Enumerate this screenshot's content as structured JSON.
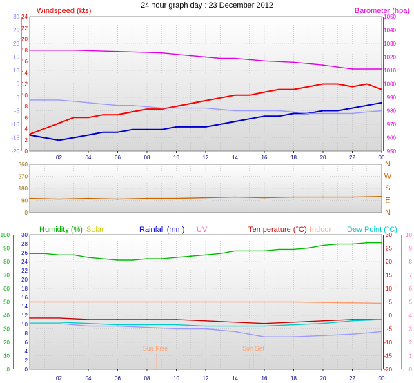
{
  "chart_data": [
    {
      "type": "line",
      "title": "24 hour graph day : 23 December 2012",
      "x_ticks": [
        "02",
        "04",
        "06",
        "08",
        "10",
        "12",
        "14",
        "16",
        "18",
        "20",
        "22",
        "00"
      ],
      "grid": true,
      "axes": [
        {
          "id": "temp_left",
          "side": "left",
          "ticks": [
            "-20",
            "-15",
            "-10",
            "-5",
            "0",
            "5",
            "10",
            "15",
            "20",
            "25",
            "30"
          ],
          "color": "#8080ff"
        },
        {
          "id": "wind",
          "side": "left",
          "label": "Windspeed (kts)",
          "ticks": [
            "0",
            "2",
            "4",
            "6",
            "8",
            "10",
            "12",
            "14",
            "16",
            "18",
            "20",
            "22",
            "24"
          ],
          "color": "#e00000"
        },
        {
          "id": "baro",
          "side": "right",
          "label": "Barometer (hpa)",
          "ticks": [
            "950",
            "960",
            "970",
            "980",
            "990",
            "1000",
            "1010",
            "1020",
            "1030",
            "1040",
            "1050"
          ],
          "color": "#e000e0"
        }
      ],
      "series": [
        {
          "name": "Windspeed (kts)",
          "axis": "wind",
          "color": "#ff0000",
          "x": [
            0,
            1,
            2,
            3,
            4,
            5,
            6,
            7,
            8,
            9,
            10,
            11,
            12,
            13,
            14,
            15,
            16,
            17,
            18,
            19,
            20,
            21,
            22,
            23,
            24
          ],
          "values": [
            3,
            4,
            5,
            6,
            6,
            6.5,
            6.5,
            7,
            7.5,
            7.5,
            8,
            8.5,
            9,
            9.5,
            10,
            10,
            10.5,
            11,
            11,
            11.5,
            12,
            12,
            11.5,
            12,
            11
          ]
        },
        {
          "name": "Barometer (hpa)",
          "axis": "baro",
          "color": "#e000e0",
          "x": [
            0,
            3,
            6,
            9,
            11,
            12,
            13,
            14,
            16,
            18,
            20,
            22,
            24
          ],
          "values": [
            1025,
            1025,
            1024,
            1023,
            1021,
            1020,
            1019,
            1019,
            1017,
            1016,
            1014,
            1011,
            1011
          ]
        },
        {
          "name": "",
          "axis": "temp_left",
          "color": "#0000cc",
          "x": [
            0,
            1,
            2,
            3,
            4,
            5,
            6,
            7,
            8,
            9,
            10,
            11,
            12,
            13,
            14,
            15,
            16,
            17,
            18,
            19,
            20,
            21,
            22,
            23,
            24
          ],
          "values": [
            -14,
            -15,
            -16,
            -15,
            -14,
            -13,
            -13,
            -12,
            -12,
            -12,
            -11,
            -11,
            -11,
            -10,
            -9,
            -8,
            -7,
            -7,
            -6,
            -6,
            -5,
            -5,
            -4,
            -3,
            -2
          ]
        },
        {
          "name": "",
          "axis": "temp_left",
          "color": "#9999ff",
          "x": [
            0,
            1,
            2,
            3,
            4,
            5,
            6,
            7,
            8,
            9,
            10,
            11,
            12,
            13,
            14,
            15,
            16,
            17,
            18,
            19,
            20,
            21,
            22,
            23,
            24
          ],
          "values": [
            -1,
            -1,
            -1,
            -1.5,
            -2,
            -2.5,
            -3,
            -3,
            -3.5,
            -4,
            -4,
            -4,
            -4,
            -4.5,
            -5,
            -5,
            -5,
            -5,
            -5.5,
            -6,
            -6,
            -6,
            -6,
            -5.5,
            -5
          ]
        }
      ]
    },
    {
      "type": "line",
      "x_ticks": [],
      "grid": true,
      "axes": [
        {
          "id": "dir",
          "side": "left",
          "ticks": [
            "0",
            "90",
            "180",
            "270",
            "360"
          ],
          "color": "#996600"
        },
        {
          "id": "compass",
          "side": "right",
          "ticks": [
            "N",
            "E",
            "S",
            "W",
            "N"
          ],
          "color": "#cc6600"
        }
      ],
      "series": [
        {
          "name": "",
          "axis": "dir",
          "color": "#cc6600",
          "x": [
            0,
            2,
            4,
            6,
            8,
            10,
            12,
            14,
            16,
            18,
            20,
            22,
            24
          ],
          "values": [
            105,
            100,
            105,
            100,
            105,
            105,
            110,
            115,
            110,
            115,
            115,
            115,
            120
          ]
        }
      ]
    },
    {
      "type": "line",
      "x_ticks": [
        "02",
        "04",
        "06",
        "08",
        "10",
        "12",
        "14",
        "16",
        "18",
        "20",
        "22",
        "00"
      ],
      "grid": true,
      "legend": [
        "Humidity (%)",
        "Solar",
        "Rainfall (mm)",
        "UV",
        "Temperature (°C)",
        "Indoor",
        "Dew Point (°C)"
      ],
      "annotations": [
        "Sun Rise",
        "Sun Set"
      ],
      "axes": [
        {
          "id": "hum",
          "side": "left",
          "ticks": [
            "0",
            "10",
            "20",
            "30",
            "40",
            "50",
            "60",
            "70",
            "80",
            "90",
            "100"
          ],
          "color": "#00aa00"
        },
        {
          "id": "rain",
          "side": "left",
          "ticks": [
            "0",
            "2",
            "4",
            "6",
            "8",
            "10",
            "12",
            "14",
            "16",
            "18",
            "20",
            "22",
            "24",
            "26",
            "28",
            "30"
          ],
          "color": "#0000cc"
        },
        {
          "id": "temp",
          "side": "right",
          "ticks": [
            "-20",
            "-15",
            "-10",
            "-5",
            "0",
            "5",
            "10",
            "15",
            "20",
            "25",
            "30"
          ],
          "color": "#cc0000"
        },
        {
          "id": "uv",
          "side": "right",
          "ticks": [
            "0",
            "1",
            "2",
            "3",
            "4",
            "5",
            "6",
            "7",
            "8",
            "9",
            "10"
          ],
          "color": "#ff66cc"
        }
      ],
      "series": [
        {
          "name": "Humidity (%)",
          "axis": "hum",
          "color": "#00bb00",
          "x": [
            0,
            1,
            2,
            3,
            4,
            5,
            6,
            7,
            8,
            9,
            10,
            11,
            12,
            13,
            14,
            15,
            16,
            17,
            18,
            19,
            20,
            21,
            22,
            23,
            24
          ],
          "values": [
            86,
            86,
            85,
            85,
            83,
            82,
            81,
            81,
            82,
            82,
            83,
            84,
            85,
            86,
            88,
            88,
            88,
            89,
            89,
            90,
            92,
            93,
            93,
            94,
            94
          ]
        },
        {
          "name": "Temperature (°C)",
          "axis": "temp",
          "color": "#cc0000",
          "x": [
            0,
            2,
            4,
            6,
            8,
            10,
            12,
            14,
            16,
            18,
            20,
            22,
            24
          ],
          "values": [
            -1,
            -1,
            -1.5,
            -1.5,
            -1.5,
            -1.5,
            -2,
            -2.5,
            -3,
            -2.5,
            -2,
            -1.5,
            -1.5
          ]
        },
        {
          "name": "Indoor",
          "axis": "temp",
          "color": "#ff9966",
          "x": [
            0,
            6,
            12,
            18,
            24
          ],
          "values": [
            5,
            5,
            5,
            5,
            4.5
          ]
        },
        {
          "name": "Dew Point (°C)",
          "axis": "temp",
          "color": "#00cccc",
          "x": [
            0,
            2,
            4,
            6,
            8,
            10,
            12,
            14,
            16,
            18,
            20,
            22,
            24
          ],
          "values": [
            -2.5,
            -2.5,
            -3,
            -3.5,
            -3.5,
            -3.5,
            -4,
            -4,
            -4,
            -3.5,
            -3,
            -2,
            -1.5
          ]
        },
        {
          "name": "",
          "axis": "temp",
          "color": "#9999ff",
          "x": [
            0,
            2,
            4,
            6,
            8,
            10,
            12,
            14,
            16,
            18,
            20,
            22,
            24
          ],
          "values": [
            -3,
            -3,
            -4,
            -4,
            -4.5,
            -5,
            -5,
            -6,
            -8,
            -8,
            -7.5,
            -7,
            -6
          ]
        }
      ]
    }
  ]
}
